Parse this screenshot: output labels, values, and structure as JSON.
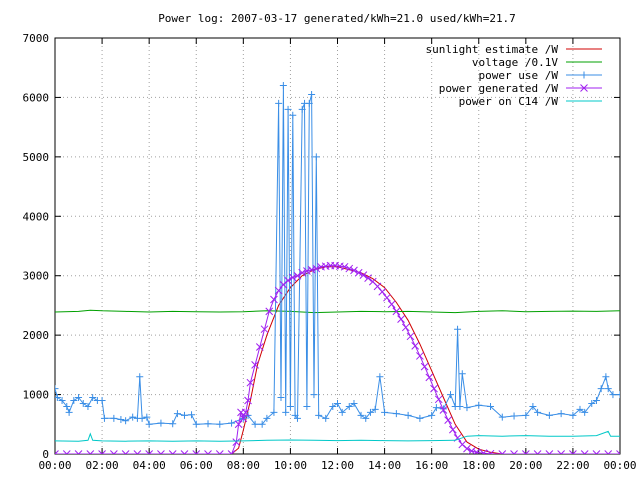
{
  "chart_data": {
    "type": "line",
    "title": "Power log: 2007-03-17 generated/kWh=21.0 used/kWh=21.7",
    "xlabel": "",
    "ylabel": "",
    "xlim": [
      0,
      24
    ],
    "ylim": [
      0,
      7000
    ],
    "x_ticks": [
      {
        "value": 0,
        "label": "00:00"
      },
      {
        "value": 2,
        "label": "02:00"
      },
      {
        "value": 4,
        "label": "04:00"
      },
      {
        "value": 6,
        "label": "06:00"
      },
      {
        "value": 8,
        "label": "08:00"
      },
      {
        "value": 10,
        "label": "10:00"
      },
      {
        "value": 12,
        "label": "12:00"
      },
      {
        "value": 14,
        "label": "14:00"
      },
      {
        "value": 16,
        "label": "16:00"
      },
      {
        "value": 18,
        "label": "18:00"
      },
      {
        "value": 20,
        "label": "20:00"
      },
      {
        "value": 22,
        "label": "22:00"
      },
      {
        "value": 24,
        "label": "00:00"
      }
    ],
    "y_ticks": [
      {
        "value": 0,
        "label": "0"
      },
      {
        "value": 1000,
        "label": "1000"
      },
      {
        "value": 2000,
        "label": "2000"
      },
      {
        "value": 3000,
        "label": "3000"
      },
      {
        "value": 4000,
        "label": "4000"
      },
      {
        "value": 5000,
        "label": "5000"
      },
      {
        "value": 6000,
        "label": "6000"
      },
      {
        "value": 7000,
        "label": "7000"
      }
    ],
    "grid": true,
    "legend_position": "top-right",
    "series": [
      {
        "name": "sunlight estimate /W",
        "color": "#d00000",
        "marker": "none",
        "points": [
          [
            0,
            0
          ],
          [
            7.5,
            0
          ],
          [
            7.8,
            100
          ],
          [
            8.0,
            400
          ],
          [
            8.3,
            900
          ],
          [
            8.6,
            1500
          ],
          [
            9.0,
            2000
          ],
          [
            9.5,
            2500
          ],
          [
            10.0,
            2800
          ],
          [
            10.5,
            3000
          ],
          [
            11.0,
            3100
          ],
          [
            11.5,
            3150
          ],
          [
            12.0,
            3150
          ],
          [
            12.5,
            3100
          ],
          [
            13.0,
            3050
          ],
          [
            13.5,
            2950
          ],
          [
            14.0,
            2800
          ],
          [
            14.5,
            2550
          ],
          [
            15.0,
            2250
          ],
          [
            15.5,
            1850
          ],
          [
            16.0,
            1400
          ],
          [
            16.5,
            950
          ],
          [
            17.0,
            500
          ],
          [
            17.5,
            200
          ],
          [
            18.0,
            80
          ],
          [
            18.5,
            30
          ],
          [
            19.0,
            0
          ],
          [
            24,
            0
          ]
        ]
      },
      {
        "name": "voltage /0.1V",
        "color": "#00a000",
        "marker": "none",
        "points": [
          [
            0,
            2390
          ],
          [
            1,
            2400
          ],
          [
            1.5,
            2420
          ],
          [
            2,
            2410
          ],
          [
            3,
            2400
          ],
          [
            4,
            2390
          ],
          [
            5,
            2400
          ],
          [
            6,
            2395
          ],
          [
            7,
            2390
          ],
          [
            8,
            2395
          ],
          [
            9,
            2410
          ],
          [
            10,
            2400
          ],
          [
            11,
            2380
          ],
          [
            12,
            2390
          ],
          [
            13,
            2400
          ],
          [
            14,
            2395
          ],
          [
            15,
            2400
          ],
          [
            16,
            2390
          ],
          [
            17,
            2380
          ],
          [
            18,
            2400
          ],
          [
            19,
            2410
          ],
          [
            20,
            2395
          ],
          [
            21,
            2400
          ],
          [
            22,
            2405
          ],
          [
            23,
            2400
          ],
          [
            24,
            2410
          ]
        ]
      },
      {
        "name": "power use /W",
        "color": "#3a8ee6",
        "marker": "plus",
        "points": [
          [
            0,
            1100
          ],
          [
            0.1,
            950
          ],
          [
            0.3,
            900
          ],
          [
            0.5,
            800
          ],
          [
            0.6,
            700
          ],
          [
            0.8,
            900
          ],
          [
            1.0,
            950
          ],
          [
            1.2,
            850
          ],
          [
            1.4,
            800
          ],
          [
            1.6,
            950
          ],
          [
            1.8,
            900
          ],
          [
            2.0,
            900
          ],
          [
            2.1,
            600
          ],
          [
            2.5,
            600
          ],
          [
            2.8,
            580
          ],
          [
            3.0,
            560
          ],
          [
            3.3,
            620
          ],
          [
            3.5,
            600
          ],
          [
            3.6,
            1300
          ],
          [
            3.7,
            600
          ],
          [
            3.9,
            620
          ],
          [
            4.0,
            500
          ],
          [
            4.5,
            520
          ],
          [
            5.0,
            510
          ],
          [
            5.2,
            680
          ],
          [
            5.5,
            650
          ],
          [
            5.8,
            660
          ],
          [
            6.0,
            500
          ],
          [
            6.5,
            510
          ],
          [
            7.0,
            500
          ],
          [
            7.5,
            520
          ],
          [
            8.0,
            600
          ],
          [
            8.2,
            650
          ],
          [
            8.5,
            500
          ],
          [
            8.8,
            500
          ],
          [
            9.0,
            600
          ],
          [
            9.3,
            700
          ],
          [
            9.5,
            5900
          ],
          [
            9.6,
            950
          ],
          [
            9.7,
            6200
          ],
          [
            9.8,
            700
          ],
          [
            9.9,
            5800
          ],
          [
            10.0,
            800
          ],
          [
            10.1,
            5700
          ],
          [
            10.2,
            650
          ],
          [
            10.3,
            600
          ],
          [
            10.5,
            5800
          ],
          [
            10.6,
            5900
          ],
          [
            10.7,
            800
          ],
          [
            10.8,
            5900
          ],
          [
            10.9,
            6050
          ],
          [
            11.0,
            1000
          ],
          [
            11.1,
            5000
          ],
          [
            11.2,
            650
          ],
          [
            11.5,
            600
          ],
          [
            11.8,
            800
          ],
          [
            12.0,
            850
          ],
          [
            12.2,
            700
          ],
          [
            12.5,
            800
          ],
          [
            12.7,
            850
          ],
          [
            13.0,
            650
          ],
          [
            13.2,
            600
          ],
          [
            13.4,
            700
          ],
          [
            13.6,
            750
          ],
          [
            13.8,
            1300
          ],
          [
            14.0,
            700
          ],
          [
            14.5,
            680
          ],
          [
            15.0,
            650
          ],
          [
            15.5,
            600
          ],
          [
            16.0,
            650
          ],
          [
            16.2,
            780
          ],
          [
            16.5,
            760
          ],
          [
            16.8,
            1000
          ],
          [
            17.0,
            800
          ],
          [
            17.1,
            2100
          ],
          [
            17.2,
            800
          ],
          [
            17.3,
            1350
          ],
          [
            17.5,
            780
          ],
          [
            18.0,
            820
          ],
          [
            18.5,
            800
          ],
          [
            19.0,
            620
          ],
          [
            19.5,
            640
          ],
          [
            20.0,
            650
          ],
          [
            20.3,
            800
          ],
          [
            20.5,
            700
          ],
          [
            21.0,
            650
          ],
          [
            21.5,
            680
          ],
          [
            22.0,
            650
          ],
          [
            22.3,
            750
          ],
          [
            22.5,
            700
          ],
          [
            22.8,
            850
          ],
          [
            23.0,
            900
          ],
          [
            23.2,
            1100
          ],
          [
            23.4,
            1300
          ],
          [
            23.5,
            1100
          ],
          [
            23.7,
            1000
          ],
          [
            24,
            1000
          ]
        ]
      },
      {
        "name": "power generated /W",
        "color": "#a020f0",
        "marker": "cross",
        "points": [
          [
            0,
            0
          ],
          [
            0.5,
            0
          ],
          [
            1,
            0
          ],
          [
            1.5,
            0
          ],
          [
            2,
            0
          ],
          [
            2.5,
            0
          ],
          [
            3,
            0
          ],
          [
            3.5,
            0
          ],
          [
            4,
            0
          ],
          [
            4.5,
            0
          ],
          [
            5,
            0
          ],
          [
            5.5,
            0
          ],
          [
            6,
            0
          ],
          [
            6.5,
            0
          ],
          [
            7,
            0
          ],
          [
            7.5,
            0
          ],
          [
            7.7,
            200
          ],
          [
            7.8,
            500
          ],
          [
            7.9,
            700
          ],
          [
            8.0,
            600
          ],
          [
            8.1,
            700
          ],
          [
            8.2,
            900
          ],
          [
            8.3,
            1200
          ],
          [
            8.5,
            1500
          ],
          [
            8.7,
            1800
          ],
          [
            8.9,
            2100
          ],
          [
            9.1,
            2400
          ],
          [
            9.3,
            2600
          ],
          [
            9.5,
            2750
          ],
          [
            9.7,
            2850
          ],
          [
            9.9,
            2920
          ],
          [
            10.1,
            2970
          ],
          [
            10.3,
            3000
          ],
          [
            10.5,
            3050
          ],
          [
            10.7,
            3080
          ],
          [
            10.9,
            3100
          ],
          [
            11.1,
            3120
          ],
          [
            11.3,
            3150
          ],
          [
            11.5,
            3160
          ],
          [
            11.7,
            3170
          ],
          [
            11.9,
            3170
          ],
          [
            12.1,
            3160
          ],
          [
            12.3,
            3150
          ],
          [
            12.5,
            3120
          ],
          [
            12.7,
            3090
          ],
          [
            12.9,
            3050
          ],
          [
            13.1,
            3010
          ],
          [
            13.3,
            2960
          ],
          [
            13.5,
            2900
          ],
          [
            13.7,
            2820
          ],
          [
            13.9,
            2730
          ],
          [
            14.1,
            2630
          ],
          [
            14.3,
            2520
          ],
          [
            14.5,
            2400
          ],
          [
            14.7,
            2270
          ],
          [
            14.9,
            2130
          ],
          [
            15.1,
            1980
          ],
          [
            15.3,
            1820
          ],
          [
            15.5,
            1650
          ],
          [
            15.7,
            1470
          ],
          [
            15.9,
            1290
          ],
          [
            16.1,
            1100
          ],
          [
            16.3,
            920
          ],
          [
            16.5,
            740
          ],
          [
            16.7,
            570
          ],
          [
            16.9,
            410
          ],
          [
            17.1,
            270
          ],
          [
            17.3,
            160
          ],
          [
            17.5,
            90
          ],
          [
            17.7,
            50
          ],
          [
            17.9,
            30
          ],
          [
            18.2,
            15
          ],
          [
            18.5,
            5
          ],
          [
            19,
            0
          ],
          [
            19.5,
            0
          ],
          [
            20,
            0
          ],
          [
            20.5,
            0
          ],
          [
            21,
            0
          ],
          [
            21.5,
            0
          ],
          [
            22,
            0
          ],
          [
            22.5,
            0
          ],
          [
            23,
            0
          ],
          [
            23.5,
            0
          ],
          [
            24,
            0
          ]
        ]
      },
      {
        "name": "power on C14 /W",
        "color": "#00c8c8",
        "marker": "none",
        "points": [
          [
            0,
            220
          ],
          [
            1,
            215
          ],
          [
            1.4,
            230
          ],
          [
            1.5,
            340
          ],
          [
            1.6,
            230
          ],
          [
            2,
            220
          ],
          [
            3,
            215
          ],
          [
            4,
            220
          ],
          [
            5,
            215
          ],
          [
            6,
            220
          ],
          [
            7,
            215
          ],
          [
            8,
            220
          ],
          [
            9,
            230
          ],
          [
            10,
            235
          ],
          [
            11,
            230
          ],
          [
            12,
            225
          ],
          [
            13,
            230
          ],
          [
            14,
            225
          ],
          [
            15,
            220
          ],
          [
            16,
            225
          ],
          [
            17,
            230
          ],
          [
            17.5,
            300
          ],
          [
            18,
            310
          ],
          [
            19,
            300
          ],
          [
            20,
            310
          ],
          [
            21,
            300
          ],
          [
            22,
            300
          ],
          [
            23,
            310
          ],
          [
            23.5,
            380
          ],
          [
            23.6,
            300
          ],
          [
            24,
            300
          ]
        ]
      }
    ]
  }
}
